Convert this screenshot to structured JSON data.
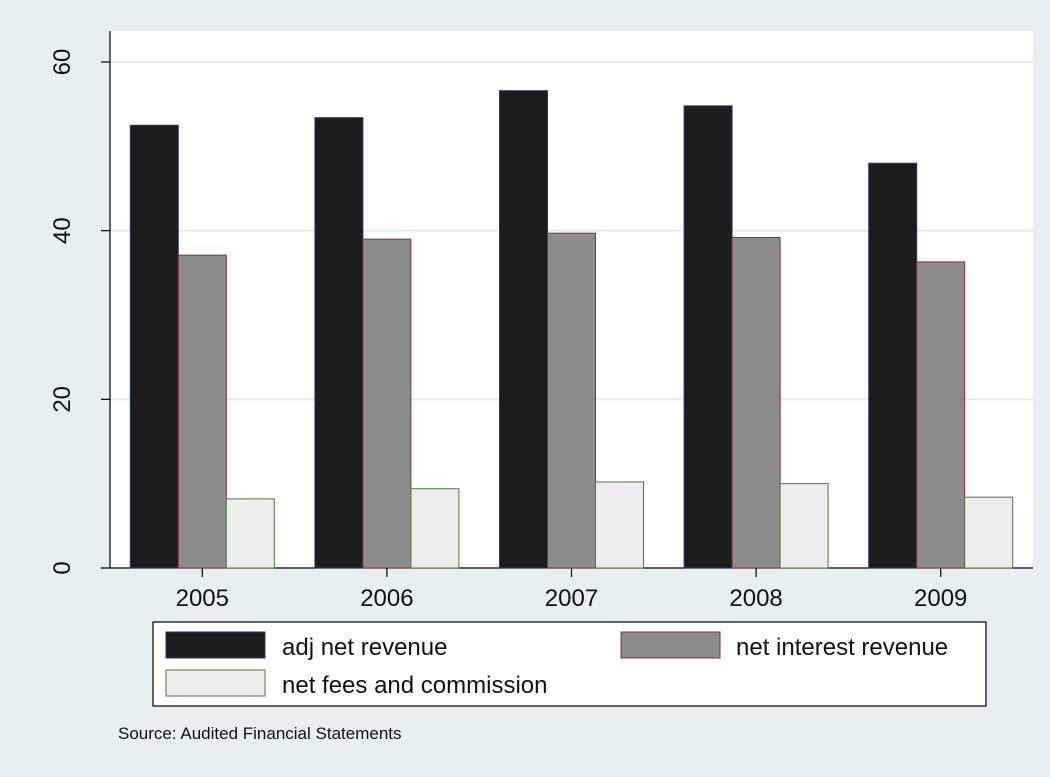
{
  "chart_data": {
    "type": "bar",
    "title": "",
    "xlabel": "",
    "ylabel": "",
    "categories": [
      "2005",
      "2006",
      "2007",
      "2008",
      "2009"
    ],
    "series": [
      {
        "name": "adj net revenue",
        "values": [
          52.5,
          53.4,
          56.6,
          54.8,
          48.0
        ]
      },
      {
        "name": "net interest revenue",
        "values": [
          37.1,
          39.0,
          39.7,
          39.2,
          36.3
        ]
      },
      {
        "name": "net fees and commission",
        "values": [
          8.2,
          9.4,
          10.2,
          10.0,
          8.4
        ]
      }
    ],
    "ylim": [
      0,
      60
    ],
    "yticks": [
      0,
      20,
      40,
      60
    ],
    "grid": true,
    "legend_position": "bottom",
    "note": "Source: Audited Financial Statements"
  },
  "colors": {
    "background": "#e8eff1",
    "plot_background": "#ffffff",
    "gridline": "#e2ebef",
    "series_fill": [
      "#1c1c1c",
      "#8c8c8c",
      "#ededed"
    ],
    "series_stroke": [
      "#2a3a66",
      "#8a3030",
      "#4a7a3a"
    ]
  }
}
